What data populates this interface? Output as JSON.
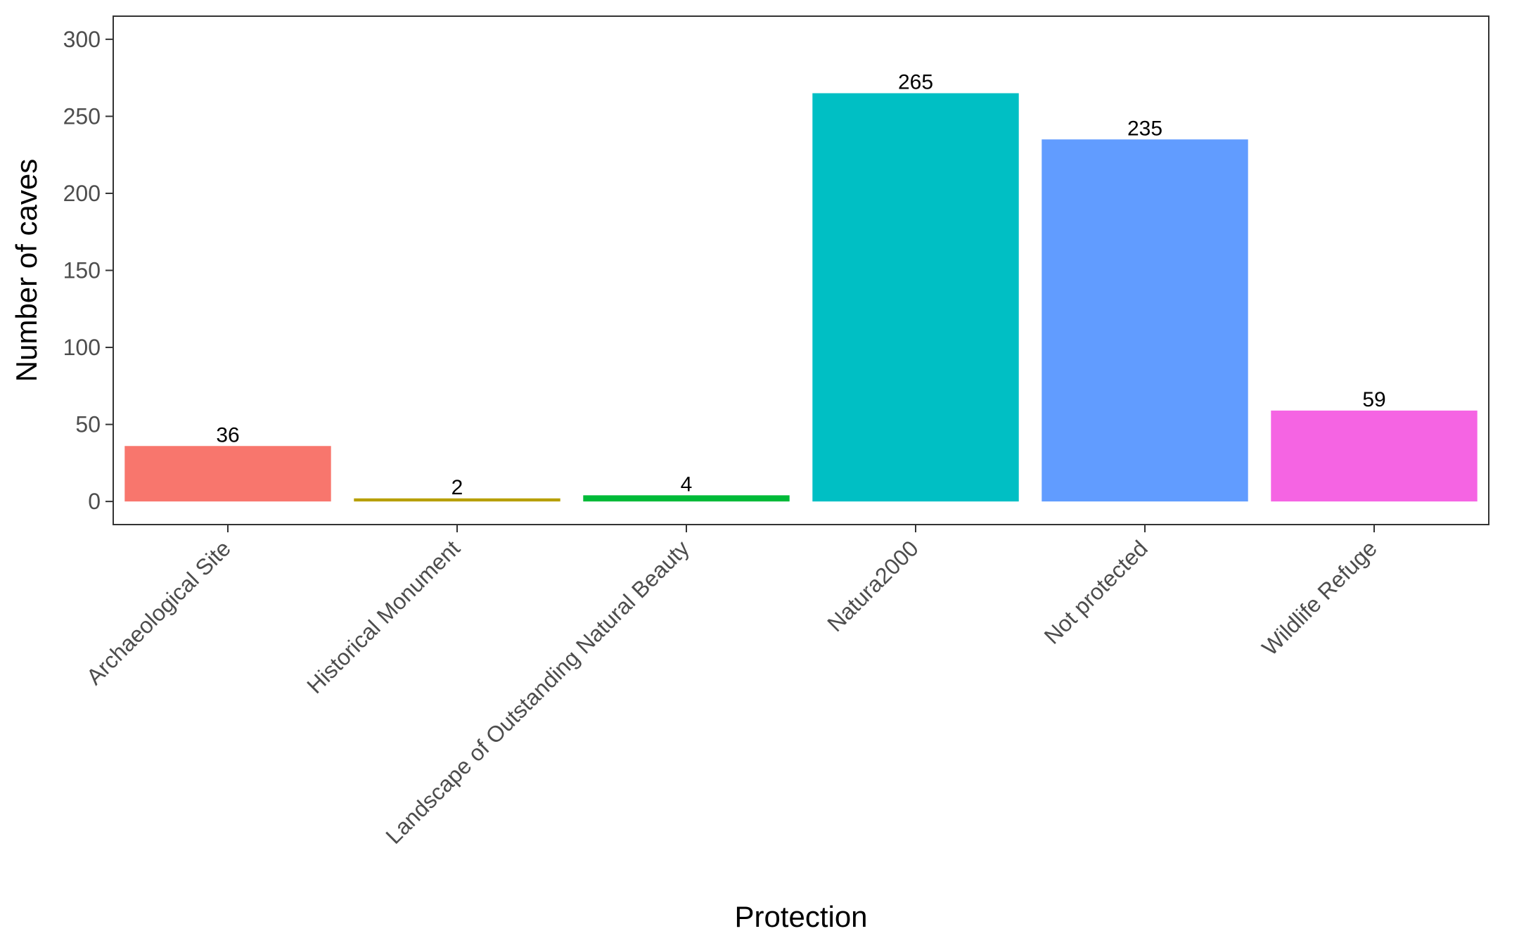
{
  "chart_data": {
    "type": "bar",
    "title": "",
    "xlabel": "Protection",
    "ylabel": "Number of caves",
    "ylim": [
      -15,
      315
    ],
    "yticks": [
      0,
      50,
      100,
      150,
      200,
      250,
      300
    ],
    "categories": [
      "Archaeological Site",
      "Historical Monument",
      "Landscape of Outstanding Natural Beauty",
      "Natura2000",
      "Not protected",
      "Wildlife Refuge"
    ],
    "values": [
      36,
      2,
      4,
      265,
      235,
      59
    ],
    "colors": [
      "#F8766D",
      "#B79F00",
      "#00BA38",
      "#00BFC4",
      "#619CFF",
      "#F564E3"
    ],
    "grid": false,
    "legend": "none"
  }
}
